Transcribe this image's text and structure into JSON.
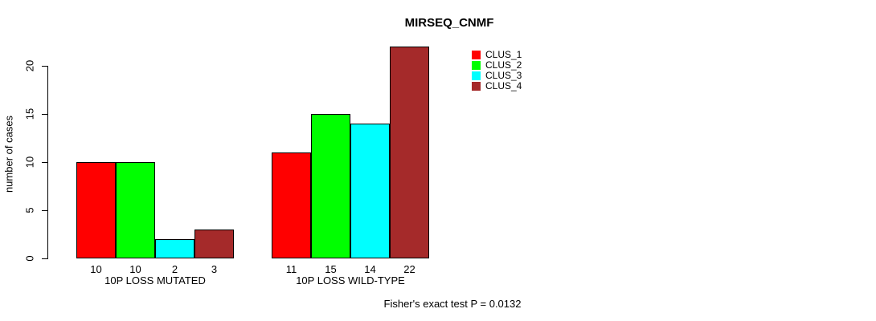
{
  "title": "MIRSEQ_CNMF",
  "y_axis": {
    "label": "number of cases",
    "tick_labels": [
      "0",
      "5",
      "10",
      "15",
      "20"
    ]
  },
  "footer": "Fisher's exact test P = 0.0132",
  "colors": {
    "background": "#FFFFFF",
    "axis": "#000000",
    "text": "#000000"
  },
  "chart_data": {
    "type": "bar",
    "title": "MIRSEQ_CNMF",
    "ylabel": "number of cases",
    "xlabel": "",
    "ylim": [
      0,
      22
    ],
    "yticks": [
      0,
      5,
      10,
      15,
      20
    ],
    "grid": false,
    "legend_position": "top-right",
    "categories": [
      "10P LOSS MUTATED",
      "10P LOSS WILD-TYPE"
    ],
    "series": [
      {
        "name": "CLUS_1",
        "color": "#FF0000",
        "values": [
          10,
          11
        ]
      },
      {
        "name": "CLUS_2",
        "color": "#00FF00",
        "values": [
          10,
          15
        ]
      },
      {
        "name": "CLUS_3",
        "color": "#00FFFF",
        "values": [
          2,
          14
        ]
      },
      {
        "name": "CLUS_4",
        "color": "#A52A2A",
        "values": [
          3,
          22
        ]
      }
    ],
    "bar_value_labels": [
      [
        10,
        10,
        2,
        3
      ],
      [
        11,
        15,
        14,
        22
      ]
    ],
    "annotation": "Fisher's exact test P = 0.0132"
  }
}
